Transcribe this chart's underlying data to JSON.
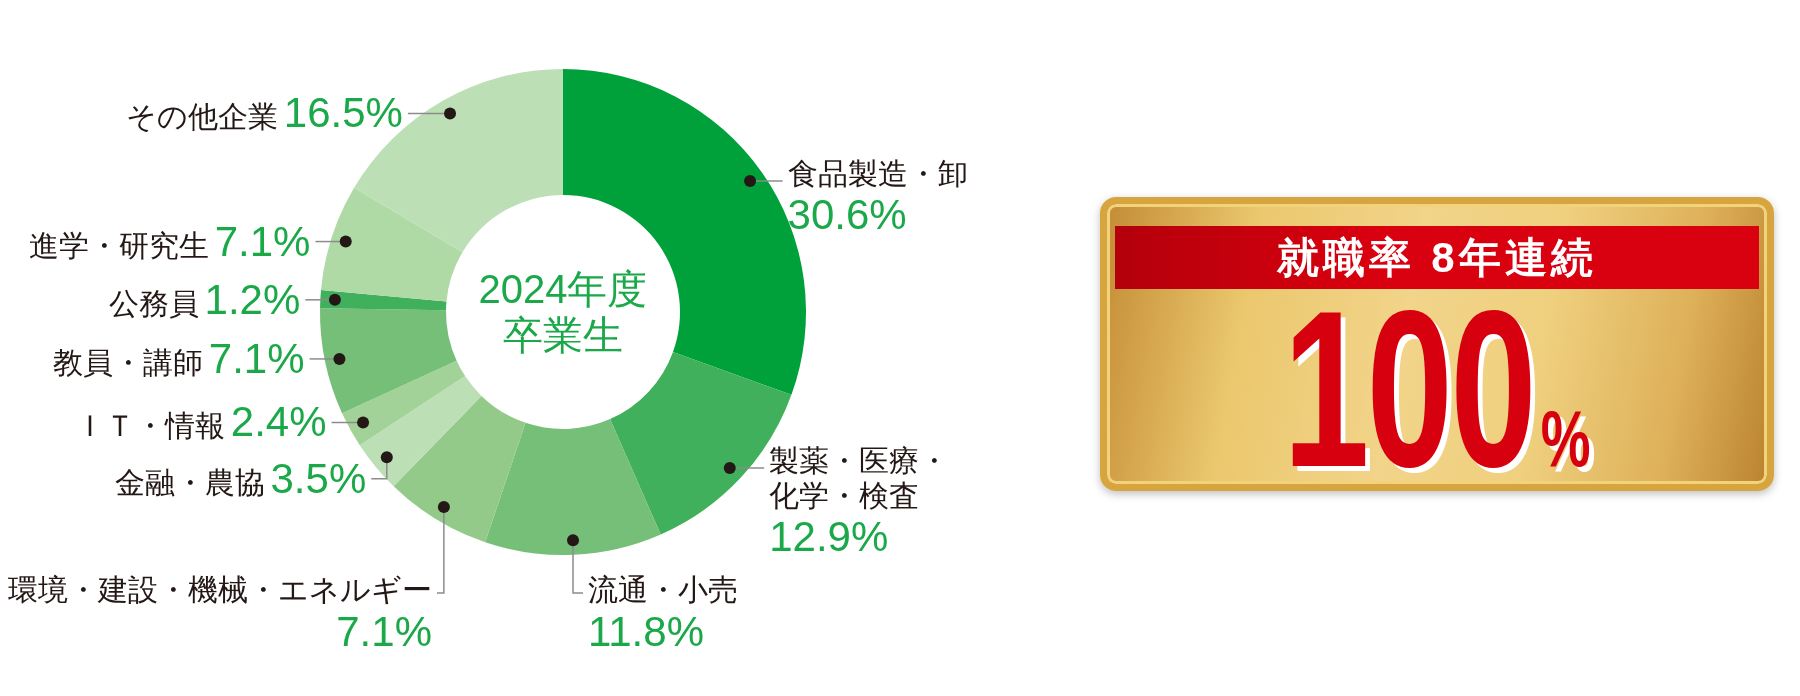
{
  "chart_data": [
    {
      "type": "donut",
      "title": "2024年度卒業生",
      "categories": [
        "食品製造・卸",
        "製薬・医療・化学・検査",
        "流通・小売",
        "環境・建設・機械・エネルギー",
        "金融・農協",
        "ＩＴ・情報",
        "教員・講師",
        "公務員",
        "進学・研究生",
        "その他企業"
      ],
      "values": [
        30.6,
        12.9,
        11.8,
        7.1,
        3.5,
        2.4,
        7.1,
        1.2,
        7.1,
        16.5
      ],
      "value_labels": [
        "30.6%",
        "12.9%",
        "11.8%",
        "7.1%",
        "3.5%",
        "2.4%",
        "7.1%",
        "1.2%",
        "7.1%",
        "16.5%"
      ],
      "colors": [
        "#00a13b",
        "#41b05c",
        "#75bf79",
        "#93ca89",
        "#bcdfb5",
        "#a2d297",
        "#75bf79",
        "#41b05c",
        "#afd9a5",
        "#bcdfb5"
      ]
    },
    {
      "type": "other",
      "title": "就職率 8年連続",
      "annotations": [
        "100%"
      ]
    }
  ]
}
